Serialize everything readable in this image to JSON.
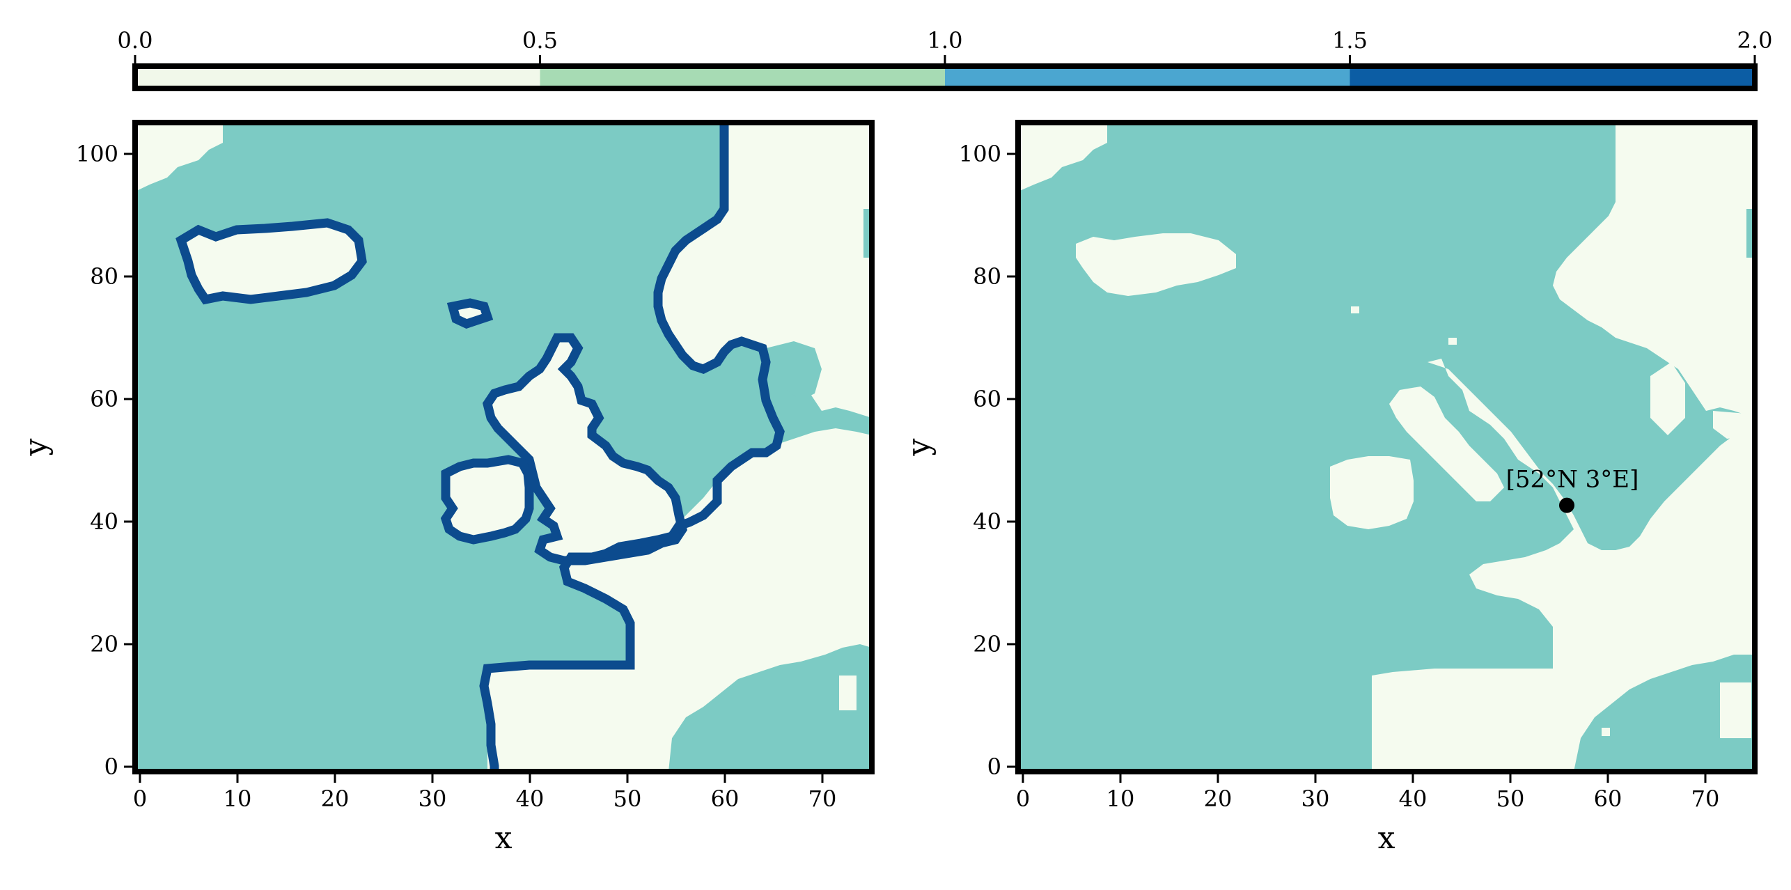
{
  "chart_data": [
    {
      "type": "colorbar",
      "ticks": [
        "0.0",
        "0.5",
        "1.0",
        "1.5",
        "2.0"
      ],
      "range": [
        0.0,
        2.0
      ],
      "bins": [
        {
          "from": 0.0,
          "to": 0.5,
          "color": "#f1f8ea"
        },
        {
          "from": 0.5,
          "to": 1.0,
          "color": "#a7dbb4"
        },
        {
          "from": 1.0,
          "to": 1.5,
          "color": "#4ba6d0"
        },
        {
          "from": 1.5,
          "to": 2.0,
          "color": "#0c5da4"
        }
      ]
    },
    {
      "type": "heatmap",
      "panel": "left",
      "xlabel": "x",
      "ylabel": "y",
      "xlim": [
        0,
        74
      ],
      "ylim": [
        0,
        104
      ],
      "xticks": [
        "0",
        "10",
        "20",
        "30",
        "40",
        "50",
        "60",
        "70"
      ],
      "yticks": [
        "0",
        "20",
        "40",
        "60",
        "80",
        "100"
      ],
      "value_colors": {
        "0": "#f5fbef",
        "1": "#7ccbc4",
        "2": "#0c4b8e"
      },
      "description_values": {
        "land": 0,
        "sea": 1,
        "coastline": 2
      }
    },
    {
      "type": "heatmap",
      "panel": "right",
      "xlabel": "x",
      "ylabel": "y",
      "xlim": [
        0,
        74
      ],
      "ylim": [
        0,
        104
      ],
      "xticks": [
        "0",
        "10",
        "20",
        "30",
        "40",
        "50",
        "60",
        "70"
      ],
      "yticks": [
        "0",
        "20",
        "40",
        "60",
        "80",
        "100"
      ],
      "value_colors": {
        "0": "#f5fbef",
        "1": "#7ccbc4"
      },
      "marker": {
        "x": 56,
        "y": 43,
        "label": "[52°N 3°E]"
      }
    }
  ]
}
